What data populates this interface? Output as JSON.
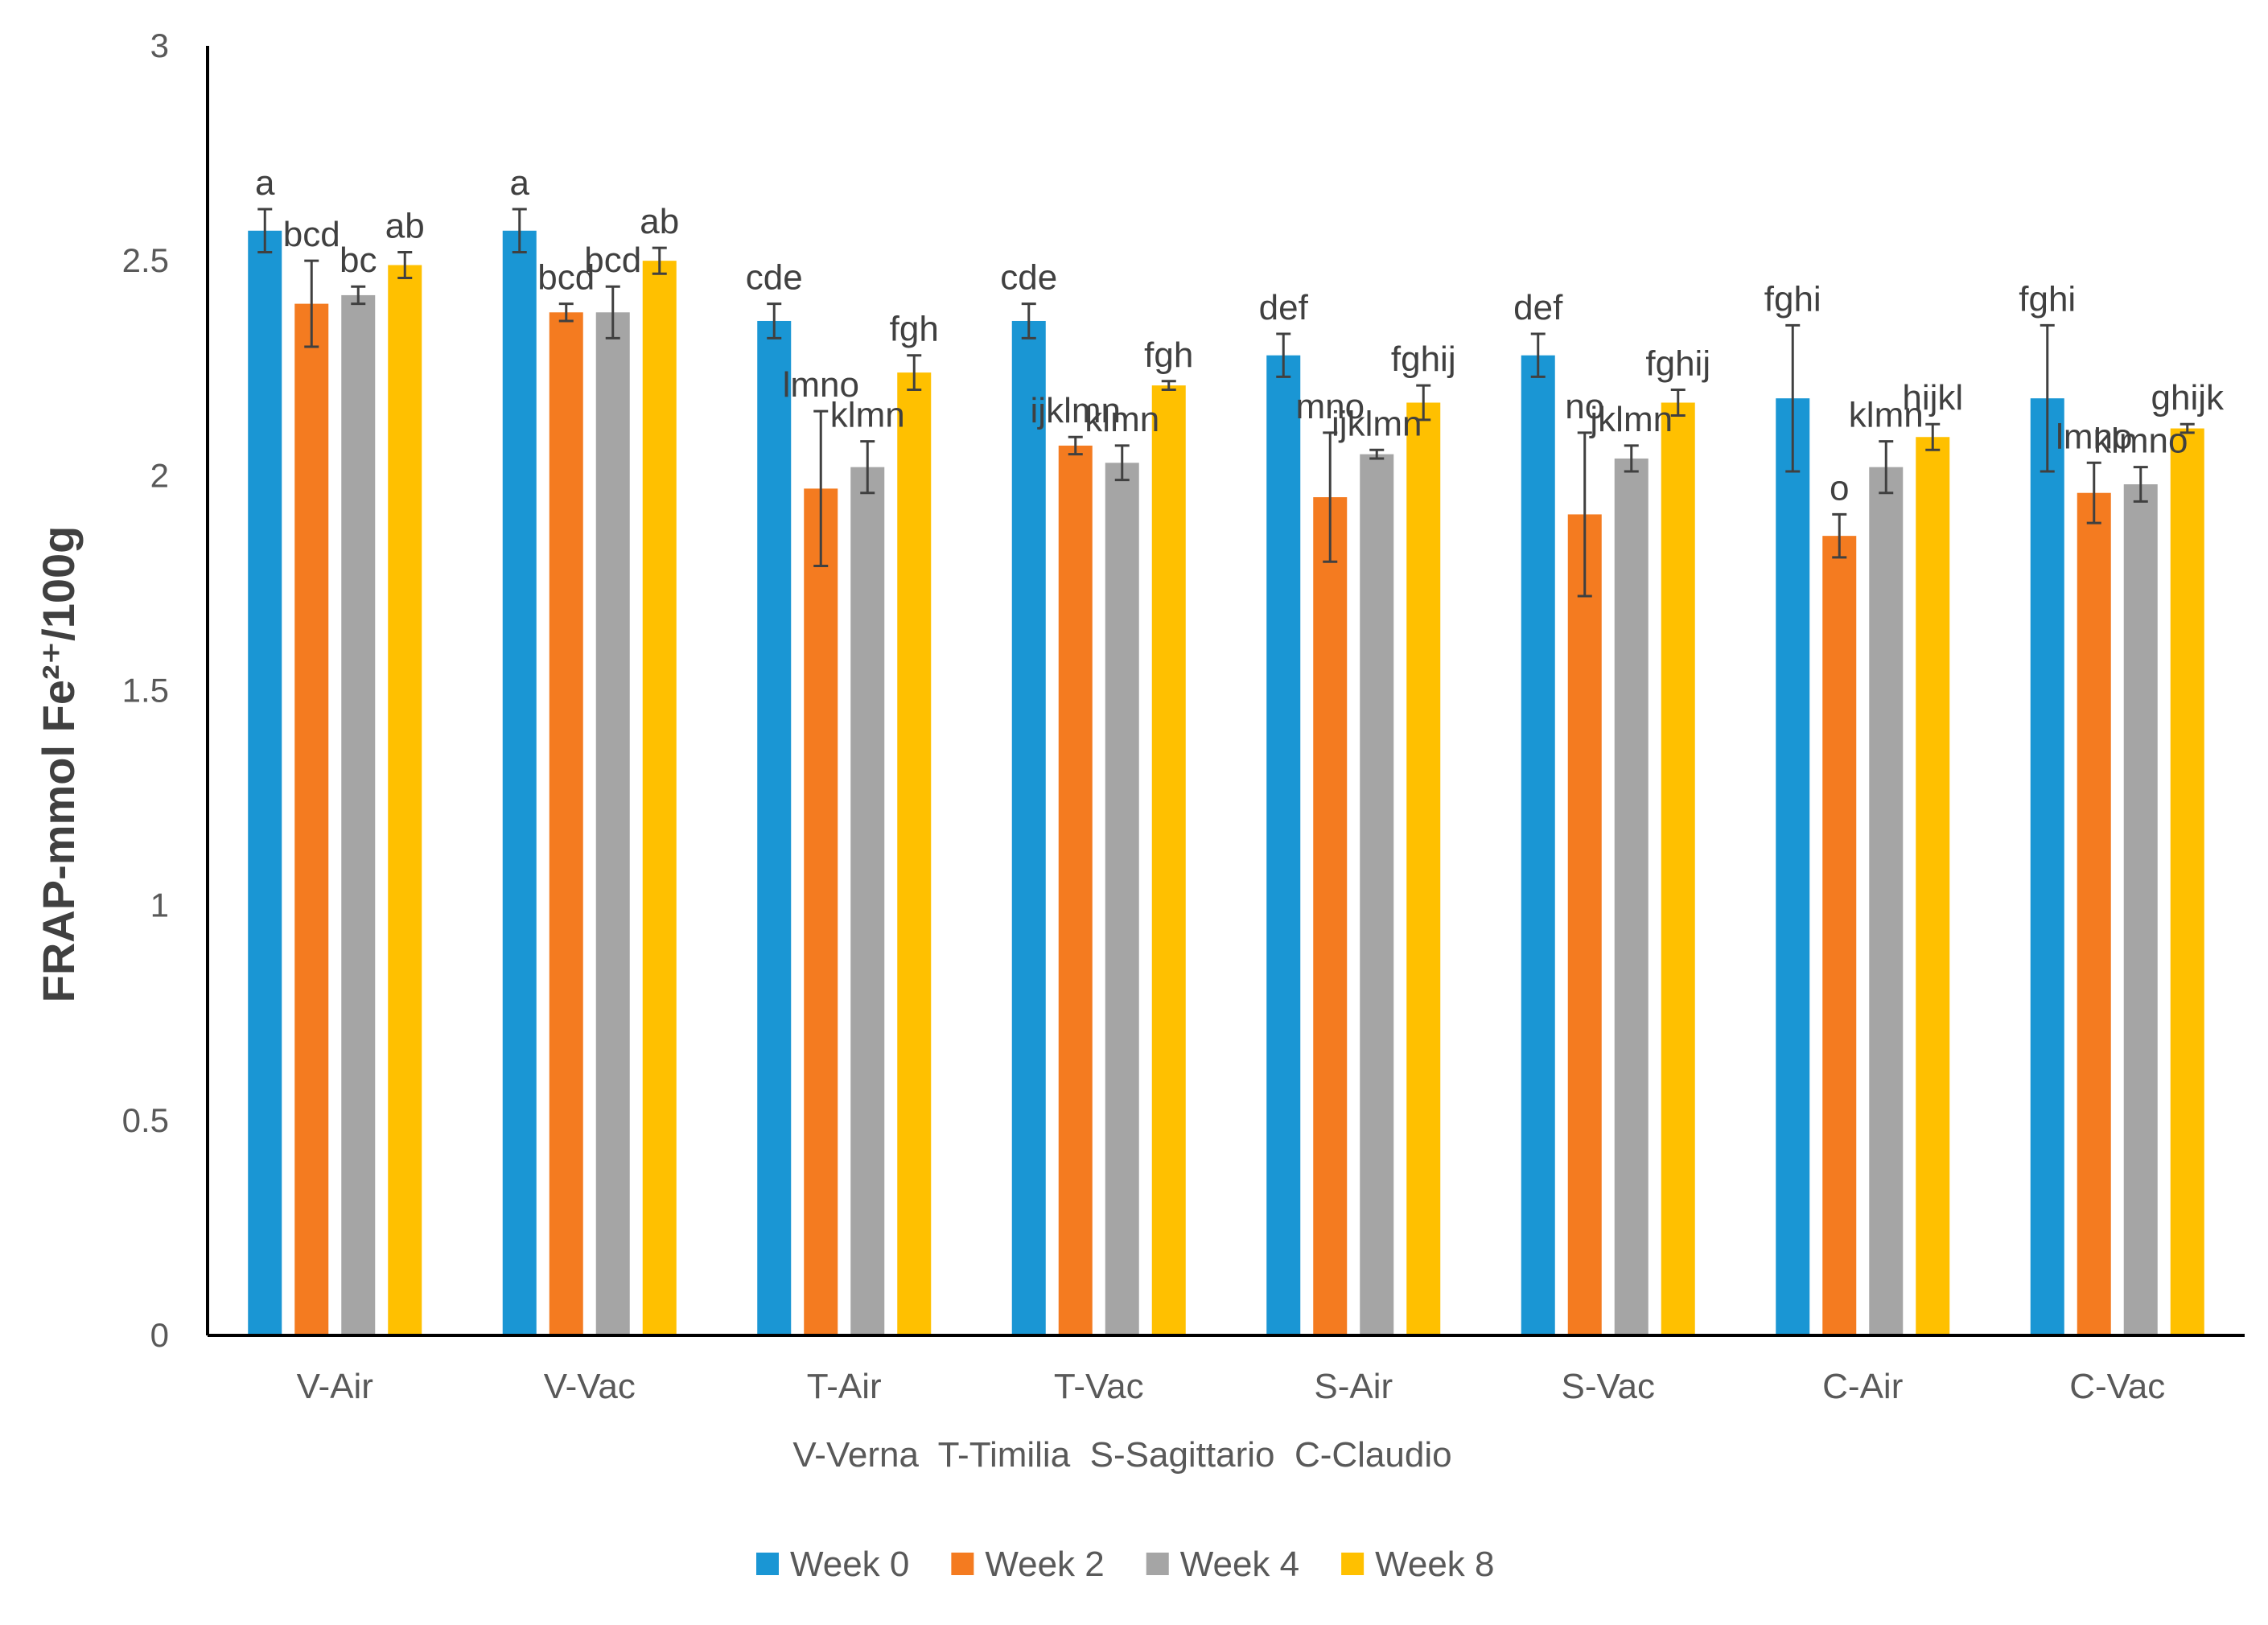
{
  "chart_data": {
    "type": "bar",
    "title": "",
    "xlabel": "V-Verna  T-Timilia  S-Sagittario  C-Claudio",
    "ylabel": "FRAP-mmol Fe²⁺/100g",
    "ylim": [
      0,
      3
    ],
    "yticks": [
      "0",
      "0.5",
      "1",
      "1.5",
      "2",
      "2.5",
      "3"
    ],
    "grid": false,
    "legend_position": "bottom",
    "categories": [
      "V-Air",
      "V-Vac",
      "T-Air",
      "T-Vac",
      "S-Air",
      "S-Vac",
      "C-Air",
      "C-Vac"
    ],
    "series": [
      {
        "name": "Week 0",
        "color": "#1A96D4",
        "values": [
          2.57,
          2.57,
          2.36,
          2.36,
          2.28,
          2.28,
          2.18,
          2.18
        ],
        "errors": [
          0.05,
          0.05,
          0.04,
          0.04,
          0.05,
          0.05,
          0.17,
          0.17
        ],
        "letters": [
          "a",
          "a",
          "cde",
          "cde",
          "def",
          "def",
          "fghi",
          "fghi"
        ]
      },
      {
        "name": "Week 2",
        "color": "#F47B20",
        "values": [
          2.4,
          2.38,
          1.97,
          2.07,
          1.95,
          1.91,
          1.86,
          1.96
        ],
        "errors": [
          0.1,
          0.02,
          0.18,
          0.02,
          0.15,
          0.19,
          0.05,
          0.07
        ],
        "letters": [
          "bcd",
          "bcd",
          "lmno",
          "ijklmn",
          "mno",
          "no",
          "o",
          "lmno"
        ]
      },
      {
        "name": "Week 4",
        "color": "#A5A5A5",
        "values": [
          2.42,
          2.38,
          2.02,
          2.03,
          2.05,
          2.04,
          2.02,
          1.98
        ],
        "errors": [
          0.02,
          0.06,
          0.06,
          0.04,
          0.01,
          0.03,
          0.06,
          0.04
        ],
        "letters": [
          "bc",
          "bcd",
          "klmn",
          "klmn",
          "ijklmn",
          "jklmn",
          "klmn",
          "klmno"
        ]
      },
      {
        "name": "Week 8",
        "color": "#FFC000",
        "values": [
          2.49,
          2.5,
          2.24,
          2.21,
          2.17,
          2.17,
          2.09,
          2.11
        ],
        "errors": [
          0.03,
          0.03,
          0.04,
          0.01,
          0.04,
          0.03,
          0.03,
          0.01
        ],
        "letters": [
          "ab",
          "ab",
          "fgh",
          "fgh",
          "fghij",
          "fghij",
          "hijkl",
          "ghijk"
        ]
      }
    ]
  }
}
